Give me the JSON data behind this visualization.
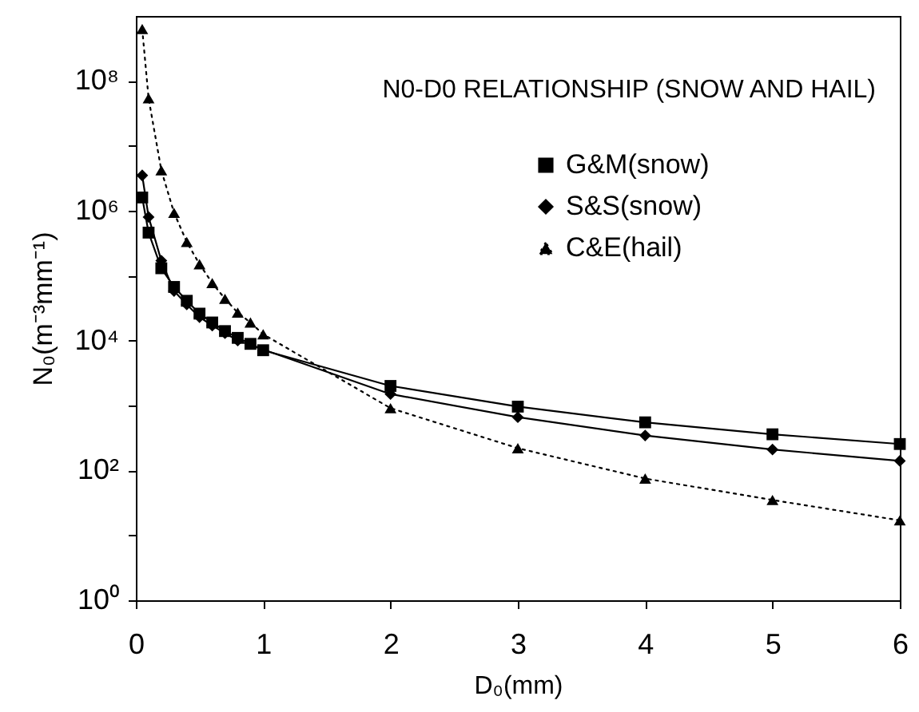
{
  "chart_data": {
    "type": "line",
    "title": "N0-D0 RELATIONSHIP (SNOW AND HAIL)",
    "xlabel": "D₀(mm)",
    "ylabel": "N₀(m⁻³mm⁻¹)",
    "x": [
      0.05,
      0.1,
      0.2,
      0.3,
      0.4,
      0.5,
      0.6,
      0.7,
      0.8,
      0.9,
      1.0,
      2,
      3,
      4,
      5,
      6
    ],
    "series": [
      {
        "name": "G&M(snow)",
        "color": "#000000",
        "marker": "square",
        "line_style": "solid",
        "values": [
          1600000,
          460000,
          130000,
          67000,
          41000,
          26000,
          19000,
          14000,
          11000,
          8900,
          7100,
          2000,
          960,
          550,
          360,
          255
        ]
      },
      {
        "name": "S&S(snow)",
        "color": "#000000",
        "marker": "diamond",
        "line_style": "solid",
        "values": [
          3500000,
          800000,
          170000,
          58000,
          36000,
          23000,
          17000,
          13000,
          10000,
          null,
          null,
          1500,
          660,
          345,
          210,
          140
        ]
      },
      {
        "name": "C&E(hail)",
        "color": "#000000",
        "marker": "triangle",
        "line_style": "dotted",
        "values": [
          630000000,
          54000000,
          4200000,
          930000,
          330000,
          150000,
          77000,
          44000,
          27000,
          19000,
          12500,
          910,
          220,
          75,
          35,
          17
        ]
      }
    ],
    "log": "y",
    "xlim": [
      0,
      6
    ],
    "ylim": [
      1,
      1000000000
    ],
    "xticks": [
      0,
      1,
      2,
      3,
      4,
      5,
      6
    ],
    "yticks": [
      {
        "value": 1,
        "label": "10⁰"
      },
      {
        "value": 10,
        "label": null
      },
      {
        "value": 100,
        "label": "10²"
      },
      {
        "value": 1000,
        "label": null
      },
      {
        "value": 10000,
        "label": "10⁴"
      },
      {
        "value": 100000,
        "label": null
      },
      {
        "value": 1000000,
        "label": "10⁶"
      },
      {
        "value": 10000000,
        "label": null
      },
      {
        "value": 100000000,
        "label": "10⁸"
      }
    ],
    "grid": false,
    "legend": "top right"
  }
}
